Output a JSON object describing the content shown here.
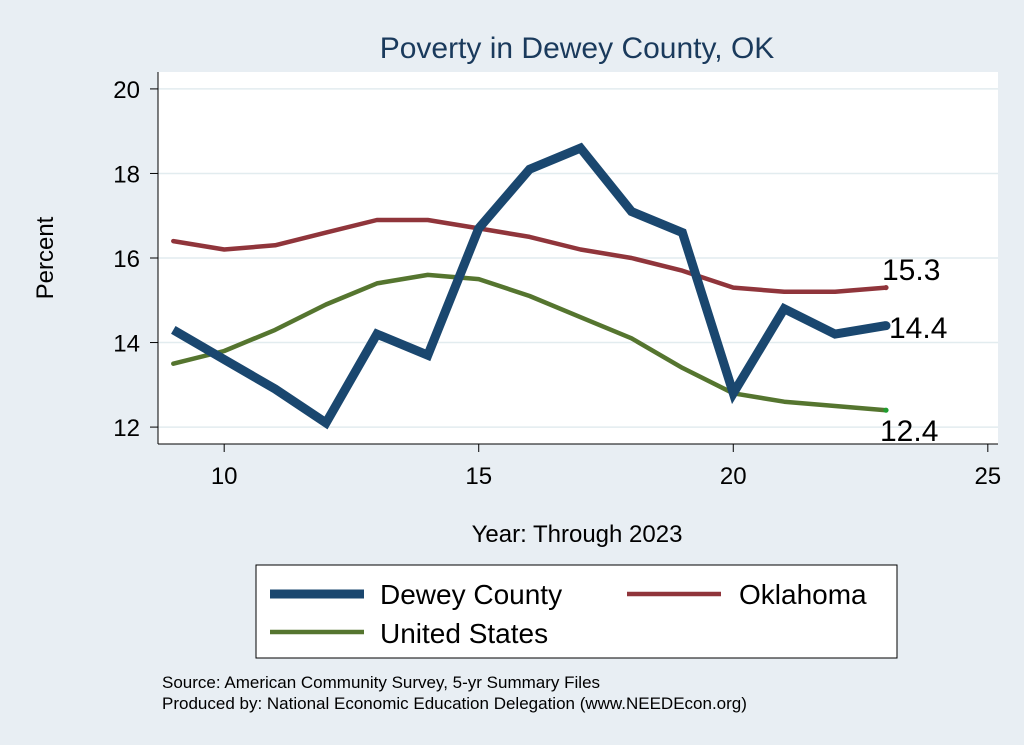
{
  "colors": {
    "background": "#e8eef3",
    "plot_background": "#ffffff",
    "grid": "#e2ecef",
    "title": "#1a3a5c",
    "dewey": "#1a476f",
    "oklahoma": "#90353b",
    "us": "#55752f"
  },
  "chart_data": {
    "type": "line",
    "title": "Poverty in Dewey County, OK",
    "xlabel": "Year: Through 2023",
    "ylabel": "Percent",
    "xlim": [
      8.7,
      25.2
    ],
    "ylim": [
      11.6,
      20.4
    ],
    "xticks": [
      10,
      15,
      20,
      25
    ],
    "yticks": [
      12,
      14,
      16,
      18,
      20
    ],
    "grid": true,
    "legend_position": "bottom",
    "series": [
      {
        "name": "Dewey County",
        "key": "dewey",
        "end_label": "14.4",
        "x": [
          9,
          10,
          11,
          12,
          13,
          14,
          15,
          16,
          17,
          18,
          19,
          20,
          21,
          22,
          23
        ],
        "values": [
          14.3,
          13.6,
          12.9,
          12.1,
          14.2,
          13.7,
          16.7,
          18.1,
          18.6,
          17.1,
          16.6,
          12.8,
          14.8,
          14.2,
          14.4
        ]
      },
      {
        "name": "Oklahoma",
        "key": "oklahoma",
        "end_label": "15.3",
        "x": [
          9,
          10,
          11,
          12,
          13,
          14,
          15,
          16,
          17,
          18,
          19,
          20,
          21,
          22,
          23
        ],
        "values": [
          16.4,
          16.2,
          16.3,
          16.6,
          16.9,
          16.9,
          16.7,
          16.5,
          16.2,
          16.0,
          15.7,
          15.3,
          15.2,
          15.2,
          15.3
        ]
      },
      {
        "name": "United States",
        "key": "us",
        "end_label": "12.4",
        "x": [
          9,
          10,
          11,
          12,
          13,
          14,
          15,
          16,
          17,
          18,
          19,
          20,
          21,
          22,
          23
        ],
        "values": [
          13.5,
          13.8,
          14.3,
          14.9,
          15.4,
          15.6,
          15.5,
          15.1,
          14.6,
          14.1,
          13.4,
          12.8,
          12.6,
          12.5,
          12.4
        ]
      }
    ]
  },
  "footer": {
    "source": "Source: American Community Survey, 5-yr Summary Files",
    "produced": "Produced by: National Economic Education Delegation (www.NEEDEcon.org)"
  }
}
